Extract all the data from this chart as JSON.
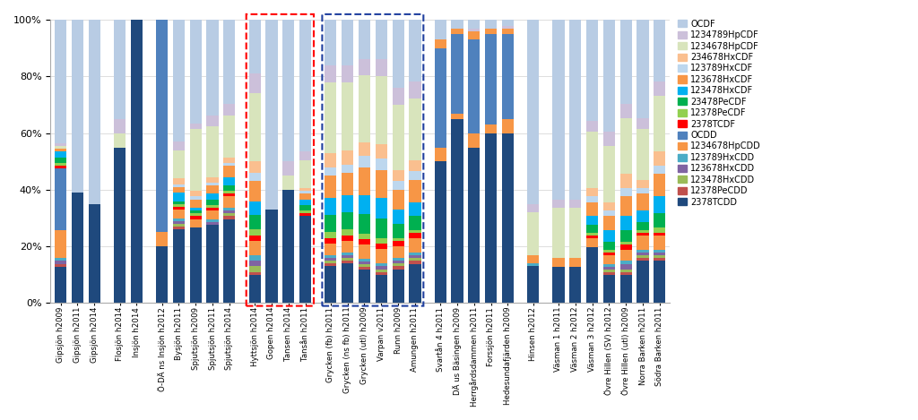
{
  "categories": [
    "Gipsjön h2009",
    "Gipsjön h2011",
    "Gipsjön h2014",
    "Flosjön h2014",
    "Insjön h2014",
    "Ö-DÄ ns Insjön h2012",
    "Bysjön h2011",
    "Spjutsjön h2009",
    "Spjutsjön h2011",
    "Spjutsjön h2014",
    "Hyttsjön h2014",
    "Gopen h2014",
    "Tansen h2014",
    "Tansån h2011",
    "Grycken (fb) h2011",
    "Grycken (ns fb) h2011",
    "Grycken (utl) h2009",
    "Varpan v2011",
    "Runn h2009",
    "Amungen h2011",
    "Svartån 4 h2011",
    "DÄ us Bäsingen h2009",
    "Herrgårdsdammen h2011",
    "Forssjön h2011",
    "Hedesundafjärden h2009",
    "Hinsen h2012",
    "Väsman 1 h2011",
    "Väsman 2 h2012",
    "Väsman 3 h2012",
    "Övre Hillen (SV) h2012",
    "Övre Hillen (utl) h2009",
    "Norra Barken h2011",
    "Södra Barken h2011"
  ],
  "series_names": [
    "2378TCDD",
    "12378PeCDD",
    "123478HxCDD",
    "123678HxCDD",
    "123789HxCDD",
    "1234678HpCDD",
    "OCDD",
    "2378TCDF",
    "12378PeCDF",
    "23478PeCDF",
    "123478HxCDF",
    "123678HxCDF",
    "123789HxCDF",
    "234678HxCDF",
    "1234678HpCDF",
    "1234789HpCDF",
    "OCDF"
  ],
  "series_colors": {
    "2378TCDD": "#1F497D",
    "12378PeCDD": "#C0504D",
    "123478HxCDD": "#9BBB59",
    "123678HxCDD": "#8064A2",
    "123789HxCDD": "#4BACC6",
    "1234678HpCDD": "#F79646",
    "OCDD": "#4F81BD",
    "2378TCDF": "#FF0000",
    "12378PeCDF": "#92D050",
    "23478PeCDF": "#00B050",
    "123478HxCDF": "#00B0F0",
    "123678HxCDF": "#F79646",
    "123789HxCDF": "#BDD7EE",
    "234678HxCDF": "#FABF8F",
    "1234678HpCDF": "#D8E4BC",
    "1234789HpCDF": "#CCC0DA",
    "OCDF": "#B8CCE4"
  },
  "data": {
    "Gipsjön h2009": {
      "2378TCDD": 13,
      "12378PeCDD": 1,
      "123478HxCDD": 0,
      "123678HxCDD": 1,
      "123789HxCDD": 1,
      "1234678HpCDD": 10,
      "OCDD": 22,
      "2378TCDF": 1,
      "12378PeCDF": 1,
      "23478PeCDF": 2,
      "123478HxCDF": 2,
      "123678HxCDF": 1,
      "123789HxCDF": 0,
      "234678HxCDF": 0,
      "1234678HpCDF": 1,
      "1234789HpCDF": 1,
      "OCDF": 44
    },
    "Gipsjön h2011": {
      "2378TCDD": 39,
      "12378PeCDD": 0,
      "123478HxCDD": 0,
      "123678HxCDD": 0,
      "123789HxCDD": 0,
      "1234678HpCDD": 0,
      "OCDD": 0,
      "2378TCDF": 0,
      "12378PeCDF": 0,
      "23478PeCDF": 0,
      "123478HxCDF": 0,
      "123678HxCDF": 0,
      "123789HxCDF": 0,
      "234678HxCDF": 0,
      "1234678HpCDF": 0,
      "1234789HpCDF": 0,
      "OCDF": 61
    },
    "Gipsjön h2014": {
      "2378TCDD": 35,
      "12378PeCDD": 0,
      "123478HxCDD": 0,
      "123678HxCDD": 0,
      "123789HxCDD": 0,
      "1234678HpCDD": 0,
      "OCDD": 0,
      "2378TCDF": 0,
      "12378PeCDF": 0,
      "23478PeCDF": 0,
      "123478HxCDF": 0,
      "123678HxCDF": 0,
      "123789HxCDF": 0,
      "234678HxCDF": 0,
      "1234678HpCDF": 0,
      "1234789HpCDF": 0,
      "OCDF": 65
    },
    "Flosjön h2014": {
      "2378TCDD": 55,
      "12378PeCDD": 0,
      "123478HxCDD": 0,
      "123678HxCDD": 0,
      "123789HxCDD": 0,
      "1234678HpCDD": 0,
      "OCDD": 0,
      "2378TCDF": 0,
      "12378PeCDF": 0,
      "23478PeCDF": 0,
      "123478HxCDF": 0,
      "123678HxCDF": 0,
      "123789HxCDF": 0,
      "234678HxCDF": 0,
      "1234678HpCDF": 5,
      "1234789HpCDF": 5,
      "OCDF": 35
    },
    "Insjön h2014": {
      "2378TCDD": 100,
      "12378PeCDD": 0,
      "123478HxCDD": 0,
      "123678HxCDD": 0,
      "123789HxCDD": 0,
      "1234678HpCDD": 0,
      "OCDD": 0,
      "2378TCDF": 0,
      "12378PeCDF": 0,
      "23478PeCDF": 0,
      "123478HxCDF": 0,
      "123678HxCDF": 0,
      "123789HxCDF": 0,
      "234678HxCDF": 0,
      "1234678HpCDF": 0,
      "1234789HpCDF": 0,
      "OCDF": 0
    },
    "Ö-DÄ ns Insjön h2012": {
      "2378TCDD": 20,
      "12378PeCDD": 0,
      "123478HxCDD": 0,
      "123678HxCDD": 0,
      "123789HxCDD": 0,
      "1234678HpCDD": 5,
      "OCDD": 75,
      "2378TCDF": 0,
      "12378PeCDF": 0,
      "23478PeCDF": 0,
      "123478HxCDF": 0,
      "123678HxCDF": 0,
      "123789HxCDF": 0,
      "234678HxCDF": 0,
      "1234678HpCDF": 0,
      "1234789HpCDF": 0,
      "OCDF": 0
    },
    "Bysjön h2011": {
      "2378TCDD": 26,
      "12378PeCDD": 1,
      "123478HxCDD": 1,
      "123678HxCDD": 1,
      "123789HxCDD": 1,
      "1234678HpCDD": 3,
      "OCDD": 0,
      "2378TCDF": 1,
      "12378PeCDF": 1,
      "23478PeCDF": 1,
      "123478HxCDF": 3,
      "123678HxCDF": 2,
      "123789HxCDF": 1,
      "234678HxCDF": 2,
      "1234678HpCDF": 10,
      "1234789HpCDF": 3,
      "OCDF": 43
    },
    "Spjutsjön h2009": {
      "2378TCDD": 27,
      "12378PeCDD": 0,
      "123478HxCDD": 0,
      "123678HxCDD": 0,
      "123789HxCDD": 0,
      "1234678HpCDD": 3,
      "OCDD": 0,
      "2378TCDF": 1,
      "12378PeCDF": 1,
      "23478PeCDF": 1,
      "123478HxCDF": 1,
      "123678HxCDF": 3,
      "123789HxCDF": 1,
      "234678HxCDF": 2,
      "1234678HpCDF": 22,
      "1234789HpCDF": 2,
      "OCDF": 37
    },
    "Spjutsjön h2011": {
      "2378TCDD": 28,
      "12378PeCDD": 0,
      "123478HxCDD": 0,
      "123678HxCDD": 1,
      "123789HxCDD": 1,
      "1234678HpCDD": 3,
      "OCDD": 0,
      "2378TCDF": 1,
      "12378PeCDF": 1,
      "23478PeCDF": 2,
      "123478HxCDF": 2,
      "123678HxCDF": 3,
      "123789HxCDF": 1,
      "234678HxCDF": 2,
      "1234678HpCDF": 18,
      "1234789HpCDF": 4,
      "OCDF": 34
    },
    "Spjutsjön h2014": {
      "2378TCDD": 30,
      "12378PeCDD": 1,
      "123478HxCDD": 1,
      "123678HxCDD": 1,
      "123789HxCDD": 1,
      "1234678HpCDD": 4,
      "OCDD": 0,
      "2378TCDF": 1,
      "12378PeCDF": 1,
      "23478PeCDF": 2,
      "123478HxCDF": 3,
      "123678HxCDF": 4,
      "123789HxCDF": 1,
      "234678HxCDF": 2,
      "1234678HpCDF": 15,
      "1234789HpCDF": 4,
      "OCDF": 30
    },
    "Hyttsjön h2014": {
      "2378TCDD": 10,
      "12378PeCDD": 1,
      "123478HxCDD": 2,
      "123678HxCDD": 2,
      "123789HxCDD": 2,
      "1234678HpCDD": 5,
      "OCDD": 0,
      "2378TCDF": 2,
      "12378PeCDF": 2,
      "23478PeCDF": 5,
      "123478HxCDF": 5,
      "123678HxCDF": 7,
      "123789HxCDF": 3,
      "234678HxCDF": 4,
      "1234678HpCDF": 24,
      "1234789HpCDF": 7,
      "OCDF": 19
    },
    "Gopen h2014": {
      "2378TCDD": 33,
      "12378PeCDD": 0,
      "123478HxCDD": 0,
      "123678HxCDD": 0,
      "123789HxCDD": 0,
      "1234678HpCDD": 0,
      "OCDD": 0,
      "2378TCDF": 0,
      "12378PeCDF": 0,
      "23478PeCDF": 0,
      "123478HxCDF": 0,
      "123678HxCDF": 0,
      "123789HxCDF": 0,
      "234678HxCDF": 0,
      "1234678HpCDF": 0,
      "1234789HpCDF": 0,
      "OCDF": 67
    },
    "Tansen h2014": {
      "2378TCDD": 40,
      "12378PeCDD": 0,
      "123478HxCDD": 0,
      "123678HxCDD": 0,
      "123789HxCDD": 0,
      "1234678HpCDD": 0,
      "OCDD": 0,
      "2378TCDF": 0,
      "12378PeCDF": 0,
      "23478PeCDF": 0,
      "123478HxCDF": 0,
      "123678HxCDF": 0,
      "123789HxCDF": 0,
      "234678HxCDF": 0,
      "1234678HpCDF": 5,
      "1234789HpCDF": 5,
      "OCDF": 50
    },
    "Tansån h2011": {
      "2378TCDD": 31,
      "12378PeCDD": 0,
      "123478HxCDD": 0,
      "123678HxCDD": 0,
      "123789HxCDD": 0,
      "1234678HpCDD": 0,
      "OCDD": 0,
      "2378TCDF": 1,
      "12378PeCDF": 1,
      "23478PeCDF": 2,
      "123478HxCDF": 2,
      "123678HxCDF": 2,
      "123789HxCDF": 1,
      "234678HxCDF": 1,
      "1234678HpCDF": 10,
      "1234789HpCDF": 3,
      "OCDF": 47
    },
    "Grycken (fb) h2011": {
      "2378TCDD": 13,
      "12378PeCDD": 1,
      "123478HxCDD": 1,
      "123678HxCDD": 1,
      "123789HxCDD": 1,
      "1234678HpCDD": 4,
      "OCDD": 0,
      "2378TCDF": 2,
      "12378PeCDF": 2,
      "23478PeCDF": 6,
      "123478HxCDF": 6,
      "123678HxCDF": 8,
      "123789HxCDF": 3,
      "234678HxCDF": 5,
      "1234678HpCDF": 25,
      "1234789HpCDF": 6,
      "OCDF": 16
    },
    "Grycken (ns fb) h2011": {
      "2378TCDD": 14,
      "12378PeCDD": 1,
      "123478HxCDD": 1,
      "123678HxCDD": 1,
      "123789HxCDD": 1,
      "1234678HpCDD": 4,
      "OCDD": 0,
      "2378TCDF": 2,
      "12378PeCDF": 2,
      "23478PeCDF": 6,
      "123478HxCDF": 6,
      "123678HxCDF": 8,
      "123789HxCDF": 3,
      "234678HxCDF": 5,
      "1234678HpCDF": 24,
      "1234789HpCDF": 6,
      "OCDF": 16
    },
    "Grycken (utl) h2009": {
      "2378TCDD": 12,
      "12378PeCDD": 1,
      "123478HxCDD": 1,
      "123678HxCDD": 1,
      "123789HxCDD": 1,
      "1234678HpCDD": 5,
      "OCDD": 0,
      "2378TCDF": 2,
      "12378PeCDF": 2,
      "23478PeCDF": 7,
      "123478HxCDF": 7,
      "123678HxCDF": 10,
      "123789HxCDF": 4,
      "234678HxCDF": 5,
      "1234678HpCDF": 24,
      "1234789HpCDF": 6,
      "OCDF": 14
    },
    "Varpan v2011": {
      "2378TCDD": 10,
      "12378PeCDD": 1,
      "123478HxCDD": 1,
      "123678HxCDD": 1,
      "123789HxCDD": 1,
      "1234678HpCDD": 5,
      "OCDD": 0,
      "2378TCDF": 2,
      "12378PeCDF": 2,
      "23478PeCDF": 7,
      "123478HxCDF": 7,
      "123678HxCDF": 10,
      "123789HxCDF": 4,
      "234678HxCDF": 5,
      "1234678HpCDF": 24,
      "1234789HpCDF": 6,
      "OCDF": 14
    },
    "Runn h2009": {
      "2378TCDD": 12,
      "12378PeCDD": 1,
      "123478HxCDD": 1,
      "123678HxCDD": 1,
      "123789HxCDD": 1,
      "1234678HpCDD": 4,
      "OCDD": 0,
      "2378TCDF": 2,
      "12378PeCDF": 1,
      "23478PeCDF": 5,
      "123478HxCDF": 5,
      "123678HxCDF": 7,
      "123789HxCDF": 3,
      "234678HxCDF": 4,
      "1234678HpCDF": 23,
      "1234789HpCDF": 6,
      "OCDF": 24
    },
    "Amungen h2011": {
      "2378TCDD": 14,
      "12378PeCDD": 1,
      "123478HxCDD": 1,
      "123678HxCDD": 1,
      "123789HxCDD": 1,
      "1234678HpCDD": 5,
      "OCDD": 0,
      "2378TCDF": 2,
      "12378PeCDF": 1,
      "23478PeCDF": 5,
      "123478HxCDF": 5,
      "123678HxCDF": 8,
      "123789HxCDF": 3,
      "234678HxCDF": 4,
      "1234678HpCDF": 22,
      "1234789HpCDF": 6,
      "OCDF": 22
    },
    "Svartån 4 h2011": {
      "2378TCDD": 50,
      "12378PeCDD": 0,
      "123478HxCDD": 0,
      "123678HxCDD": 0,
      "123789HxCDD": 0,
      "1234678HpCDD": 5,
      "OCDD": 35,
      "2378TCDF": 0,
      "12378PeCDF": 0,
      "23478PeCDF": 0,
      "123478HxCDF": 0,
      "123678HxCDF": 3,
      "123789HxCDF": 0,
      "234678HxCDF": 0,
      "1234678HpCDF": 0,
      "1234789HpCDF": 0,
      "OCDF": 7
    },
    "DÄ us Bäsingen h2009": {
      "2378TCDD": 65,
      "12378PeCDD": 0,
      "123478HxCDD": 0,
      "123678HxCDD": 0,
      "123789HxCDD": 0,
      "1234678HpCDD": 2,
      "OCDD": 28,
      "2378TCDF": 0,
      "12378PeCDF": 0,
      "23478PeCDF": 0,
      "123478HxCDF": 0,
      "123678HxCDF": 2,
      "123789HxCDF": 0,
      "234678HxCDF": 0,
      "1234678HpCDF": 0,
      "1234789HpCDF": 0,
      "OCDF": 3
    },
    "Herrgårdsdammen h2011": {
      "2378TCDD": 55,
      "12378PeCDD": 0,
      "123478HxCDD": 0,
      "123678HxCDD": 0,
      "123789HxCDD": 0,
      "1234678HpCDD": 5,
      "OCDD": 33,
      "2378TCDF": 0,
      "12378PeCDF": 0,
      "23478PeCDF": 0,
      "123478HxCDF": 0,
      "123678HxCDF": 3,
      "123789HxCDF": 0,
      "234678HxCDF": 0,
      "1234678HpCDF": 0,
      "1234789HpCDF": 1,
      "OCDF": 3
    },
    "Forssjön h2011": {
      "2378TCDD": 60,
      "12378PeCDD": 0,
      "123478HxCDD": 0,
      "123678HxCDD": 0,
      "123789HxCDD": 0,
      "1234678HpCDD": 3,
      "OCDD": 32,
      "2378TCDF": 0,
      "12378PeCDF": 0,
      "23478PeCDF": 0,
      "123478HxCDF": 0,
      "123678HxCDF": 2,
      "123789HxCDF": 0,
      "234678HxCDF": 0,
      "1234678HpCDF": 0,
      "1234789HpCDF": 0,
      "OCDF": 3
    },
    "Hedesundafjärden h2009": {
      "2378TCDD": 60,
      "12378PeCDD": 0,
      "123478HxCDD": 0,
      "123678HxCDD": 0,
      "123789HxCDD": 0,
      "1234678HpCDD": 5,
      "OCDD": 30,
      "2378TCDF": 0,
      "12378PeCDF": 0,
      "23478PeCDF": 0,
      "123478HxCDF": 0,
      "123678HxCDF": 2,
      "123789HxCDF": 0,
      "234678HxCDF": 0,
      "1234678HpCDF": 0,
      "1234789HpCDF": 1,
      "OCDF": 2
    },
    "Hinsen h2012": {
      "2378TCDD": 13,
      "12378PeCDD": 0,
      "123478HxCDD": 0,
      "123678HxCDD": 0,
      "123789HxCDD": 1,
      "1234678HpCDD": 3,
      "OCDD": 0,
      "2378TCDF": 0,
      "12378PeCDF": 0,
      "23478PeCDF": 0,
      "123478HxCDF": 0,
      "123678HxCDF": 0,
      "123789HxCDF": 0,
      "234678HxCDF": 0,
      "1234678HpCDF": 15,
      "1234789HpCDF": 3,
      "OCDF": 65
    },
    "Väsman 1 h2011": {
      "2378TCDD": 13,
      "12378PeCDD": 0,
      "123478HxCDD": 0,
      "123678HxCDD": 0,
      "123789HxCDD": 0,
      "1234678HpCDD": 0,
      "OCDD": 0,
      "2378TCDF": 0,
      "12378PeCDF": 0,
      "23478PeCDF": 0,
      "123478HxCDF": 0,
      "123678HxCDF": 3,
      "123789HxCDF": 0,
      "234678HxCDF": 0,
      "1234678HpCDF": 18,
      "1234789HpCDF": 3,
      "OCDF": 64
    },
    "Väsman 2 h2012": {
      "2378TCDD": 13,
      "12378PeCDD": 0,
      "123478HxCDD": 0,
      "123678HxCDD": 0,
      "123789HxCDD": 0,
      "1234678HpCDD": 0,
      "OCDD": 0,
      "2378TCDF": 0,
      "12378PeCDF": 0,
      "23478PeCDF": 0,
      "123478HxCDF": 0,
      "123678HxCDF": 3,
      "123789HxCDF": 0,
      "234678HxCDF": 0,
      "1234678HpCDF": 18,
      "1234789HpCDF": 3,
      "OCDF": 64
    },
    "Väsman 3 h2012": {
      "2378TCDD": 20,
      "12378PeCDD": 0,
      "123478HxCDD": 0,
      "123678HxCDD": 0,
      "123789HxCDD": 0,
      "1234678HpCDD": 3,
      "OCDD": 0,
      "2378TCDF": 1,
      "12378PeCDF": 1,
      "23478PeCDF": 3,
      "123478HxCDF": 3,
      "123678HxCDF": 5,
      "123789HxCDF": 2,
      "234678HxCDF": 3,
      "1234678HpCDF": 20,
      "1234789HpCDF": 4,
      "OCDF": 36
    },
    "Övre Hillen (SV) h2012": {
      "2378TCDD": 10,
      "12378PeCDD": 1,
      "123478HxCDD": 1,
      "123678HxCDD": 1,
      "123789HxCDD": 1,
      "1234678HpCDD": 3,
      "OCDD": 0,
      "2378TCDF": 1,
      "12378PeCDF": 1,
      "23478PeCDF": 3,
      "123478HxCDF": 4,
      "123678HxCDF": 5,
      "123789HxCDF": 2,
      "234678HxCDF": 3,
      "1234678HpCDF": 20,
      "1234789HpCDF": 5,
      "OCDF": 40
    },
    "Övre Hillen (utl) h2009": {
      "2378TCDD": 10,
      "12378PeCDD": 1,
      "123478HxCDD": 1,
      "123678HxCDD": 2,
      "123789HxCDD": 1,
      "1234678HpCDD": 4,
      "OCDD": 0,
      "2378TCDF": 2,
      "12378PeCDF": 1,
      "23478PeCDF": 4,
      "123478HxCDF": 5,
      "123678HxCDF": 7,
      "123789HxCDF": 3,
      "234678HxCDF": 5,
      "1234678HpCDF": 20,
      "1234789HpCDF": 5,
      "OCDF": 30
    },
    "Norra Barken h2011": {
      "2378TCDD": 15,
      "12378PeCDD": 1,
      "123478HxCDD": 1,
      "123678HxCDD": 1,
      "123789HxCDD": 1,
      "1234678HpCDD": 5,
      "OCDD": 0,
      "2378TCDF": 1,
      "12378PeCDF": 1,
      "23478PeCDF": 3,
      "123478HxCDF": 4,
      "123678HxCDF": 6,
      "123789HxCDF": 2,
      "234678HxCDF": 3,
      "1234678HpCDF": 18,
      "1234789HpCDF": 4,
      "OCDF": 35
    },
    "Södra Barken h2011": {
      "2378TCDD": 15,
      "12378PeCDD": 1,
      "123478HxCDD": 1,
      "123678HxCDD": 1,
      "123789HxCDD": 1,
      "1234678HpCDD": 5,
      "OCDD": 0,
      "2378TCDF": 1,
      "12378PeCDF": 2,
      "23478PeCDF": 5,
      "123478HxCDF": 6,
      "123678HxCDF": 8,
      "123789HxCDF": 3,
      "234678HxCDF": 5,
      "1234678HpCDF": 20,
      "1234789HpCDF": 5,
      "OCDF": 22
    }
  },
  "red_box": [
    "Hyttsjön h2014",
    "Gopen h2014",
    "Tansen h2014",
    "Tansån h2011"
  ],
  "blue_box": [
    "Grycken (fb) h2011",
    "Grycken (ns fb) h2011",
    "Grycken (utl) h2009",
    "Varpan v2011",
    "Runn h2009",
    "Amungen h2011"
  ],
  "gap_after": [
    "Gipsjön h2014",
    "Insjön h2014",
    "Spjutsjön h2014",
    "Tansån h2011",
    "Amungen h2011",
    "Hedesundafjärden h2009",
    "Hinsen h2012"
  ],
  "legend_order": [
    "OCDF",
    "1234789HpCDF",
    "1234678HpCDF",
    "234678HxCDF",
    "123789HxCDF",
    "123678HxCDF",
    "123478HxCDF",
    "23478PeCDF",
    "12378PeCDF",
    "2378TCDF",
    "OCDD",
    "1234678HpCDD",
    "123789HxCDD",
    "123678HxCDD",
    "123478HxCDD",
    "12378PeCDD",
    "2378TCDD"
  ]
}
